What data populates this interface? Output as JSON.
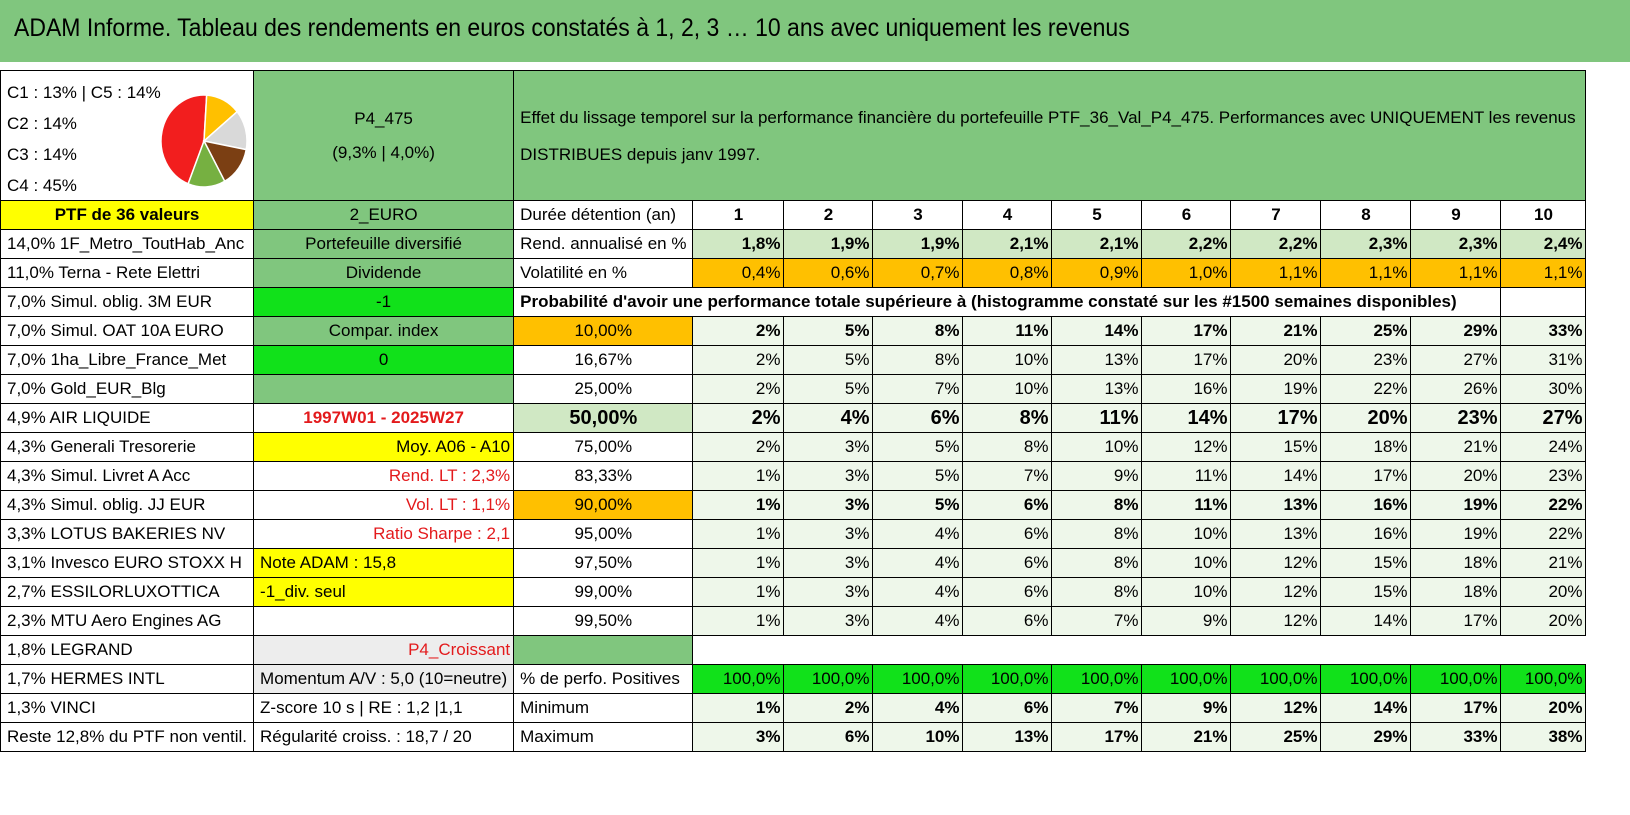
{
  "title": "ADAM Informe. Tableau des rendements en euros constatés à 1, 2, 3 … 10 ans avec uniquement les revenus",
  "allocation": {
    "lines": [
      "C1 : 13% | C5 : 14%",
      "C2 : 14%",
      "C3 : 14%",
      "C4 : 45%"
    ],
    "pie_slices": [
      {
        "label": "C4",
        "value": 45,
        "color": "#f21e1e"
      },
      {
        "label": "C1",
        "value": 13,
        "color": "#ffc000"
      },
      {
        "label": "C2",
        "value": 14,
        "color": "#d9d9d9"
      },
      {
        "label": "C3",
        "value": 14,
        "color": "#7b3f13"
      },
      {
        "label": "C5",
        "value": 14,
        "color": "#76b041"
      }
    ]
  },
  "portfolio": {
    "code": "P4_475",
    "stats": "(9,3% | 4,0%)"
  },
  "description": "Effet du lissage temporel sur la performance financière du portefeuille PTF_36_Val_P4_475. Performances avec UNIQUEMENT les revenus DISTRIBUES depuis janv 1997.",
  "ptf_label": "PTF de 36 valeurs",
  "currency": "2_EURO",
  "duration_label": "Durée détention (an)",
  "years": [
    "1",
    "2",
    "3",
    "4",
    "5",
    "6",
    "7",
    "8",
    "9",
    "10"
  ],
  "holdings": [
    "14,0% 1F_Metro_ToutHab_Anc",
    "11,0% Terna - Rete Elettri",
    "7,0% Simul. oblig. 3M EUR",
    "7,0% Simul. OAT 10A EURO",
    "7,0% 1ha_Libre_France_Met",
    "7,0% Gold_EUR_Blg",
    "4,9% AIR LIQUIDE",
    "4,3% Generali Tresorerie",
    "4,3% Simul. Livret A Acc",
    "4,3% Simul. oblig. JJ EUR",
    "3,3% LOTUS BAKERIES NV",
    "3,1% Invesco EURO STOXX H",
    "2,7% ESSILORLUXOTTICA",
    "2,3% MTU Aero Engines AG",
    "1,8% LEGRAND",
    "1,7% HERMES INTL",
    "1,3% VINCI",
    "Reste 12,8% du PTF non ventil."
  ],
  "info": {
    "diversified": "Portefeuille diversifié",
    "dividend": "Dividende",
    "minus1": "-1",
    "compar": "Compar. index",
    "zero": "0",
    "empty": "",
    "period": "1997W01 - 2025W27",
    "moy": "Moy. A06 - A10",
    "rend_lt": "Rend. LT : 2,3%",
    "vol_lt": "Vol. LT : 1,1%",
    "sharpe": "Ratio Sharpe : 2,1",
    "note": "Note ADAM : 15,8",
    "div_seul": "-1_div. seul",
    "p4": "P4_Croissant",
    "momentum": "Momentum A/V : 5,0 (10=neutre)",
    "zscore": "Z-score 10 s | RE : 1,2 |1,1",
    "regularite": "Régularité croiss. : 18,7 / 20"
  },
  "rend": {
    "label": "Rend. annualisé en %",
    "values": [
      "1,8%",
      "1,9%",
      "1,9%",
      "2,1%",
      "2,1%",
      "2,2%",
      "2,2%",
      "2,3%",
      "2,3%",
      "2,4%"
    ]
  },
  "vol": {
    "label": "Volatilité en %",
    "values": [
      "0,4%",
      "0,6%",
      "0,7%",
      "0,8%",
      "0,9%",
      "1,0%",
      "1,1%",
      "1,1%",
      "1,1%",
      "1,1%"
    ]
  },
  "prob_title": "Probabilité d'avoir une performance totale supérieure à (histogramme constaté sur les #1500 semaines disponibles)",
  "prob_rows": [
    {
      "label": "10,00%",
      "values": [
        "2%",
        "5%",
        "8%",
        "11%",
        "14%",
        "17%",
        "21%",
        "25%",
        "29%",
        "33%"
      ]
    },
    {
      "label": "16,67%",
      "values": [
        "2%",
        "5%",
        "8%",
        "10%",
        "13%",
        "17%",
        "20%",
        "23%",
        "27%",
        "31%"
      ]
    },
    {
      "label": "25,00%",
      "values": [
        "2%",
        "5%",
        "7%",
        "10%",
        "13%",
        "16%",
        "19%",
        "22%",
        "26%",
        "30%"
      ]
    },
    {
      "label": "50,00%",
      "values": [
        "2%",
        "4%",
        "6%",
        "8%",
        "11%",
        "14%",
        "17%",
        "20%",
        "23%",
        "27%"
      ]
    },
    {
      "label": "75,00%",
      "values": [
        "2%",
        "3%",
        "5%",
        "8%",
        "10%",
        "12%",
        "15%",
        "18%",
        "21%",
        "24%"
      ]
    },
    {
      "label": "83,33%",
      "values": [
        "1%",
        "3%",
        "5%",
        "7%",
        "9%",
        "11%",
        "14%",
        "17%",
        "20%",
        "23%"
      ]
    },
    {
      "label": "90,00%",
      "values": [
        "1%",
        "3%",
        "5%",
        "6%",
        "8%",
        "11%",
        "13%",
        "16%",
        "19%",
        "22%"
      ]
    },
    {
      "label": "95,00%",
      "values": [
        "1%",
        "3%",
        "4%",
        "6%",
        "8%",
        "10%",
        "13%",
        "16%",
        "19%",
        "22%"
      ]
    },
    {
      "label": "97,50%",
      "values": [
        "1%",
        "3%",
        "4%",
        "6%",
        "8%",
        "10%",
        "12%",
        "15%",
        "18%",
        "21%"
      ]
    },
    {
      "label": "99,00%",
      "values": [
        "1%",
        "3%",
        "4%",
        "6%",
        "8%",
        "10%",
        "12%",
        "15%",
        "18%",
        "20%"
      ]
    },
    {
      "label": "99,50%",
      "values": [
        "1%",
        "3%",
        "4%",
        "6%",
        "7%",
        "9%",
        "12%",
        "14%",
        "17%",
        "20%"
      ]
    }
  ],
  "pos": {
    "label": "% de perfo. Positives",
    "values": [
      "100,0%",
      "100,0%",
      "100,0%",
      "100,0%",
      "100,0%",
      "100,0%",
      "100,0%",
      "100,0%",
      "100,0%",
      "100,0%"
    ]
  },
  "min": {
    "label": "Minimum",
    "values": [
      "1%",
      "2%",
      "4%",
      "6%",
      "7%",
      "9%",
      "12%",
      "14%",
      "17%",
      "20%"
    ]
  },
  "max": {
    "label": "Maximum",
    "values": [
      "3%",
      "6%",
      "10%",
      "13%",
      "17%",
      "21%",
      "25%",
      "29%",
      "33%",
      "38%"
    ]
  }
}
